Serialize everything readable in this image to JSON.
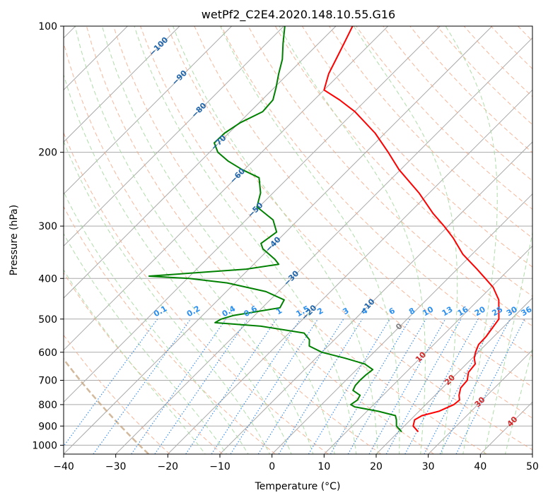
{
  "chart_data": {
    "type": "line",
    "title": "wetPf2_C2E4.2020.148.10.55.G16",
    "xlabel": "Temperature (°C)",
    "ylabel": "Pressure (hPa)",
    "xlim": [
      -40,
      50
    ],
    "ylim": [
      1050,
      100
    ],
    "x_ticks": [
      -40,
      -30,
      -20,
      -10,
      0,
      10,
      20,
      30,
      40,
      50
    ],
    "x_tick_labels": [
      "−40",
      "−30",
      "−20",
      "−10",
      "0",
      "10",
      "20",
      "30",
      "40",
      "50"
    ],
    "y_ticks": [
      100,
      200,
      300,
      400,
      500,
      600,
      700,
      800,
      900,
      1000
    ],
    "y_tick_labels": [
      "100",
      "200",
      "300",
      "400",
      "500",
      "600",
      "700",
      "800",
      "900",
      "1000"
    ],
    "grid": true,
    "series": [
      {
        "name": "Temperature",
        "color": "#ff0000",
        "points": [
          [
            929,
            23.8
          ],
          [
            900,
            21.7
          ],
          [
            870,
            20.8
          ],
          [
            850,
            21.4
          ],
          [
            830,
            23.8
          ],
          [
            800,
            25.4
          ],
          [
            780,
            25.6
          ],
          [
            760,
            24.6
          ],
          [
            730,
            23.5
          ],
          [
            700,
            23.3
          ],
          [
            670,
            22.0
          ],
          [
            640,
            21.7
          ],
          [
            620,
            20.4
          ],
          [
            600,
            19.5
          ],
          [
            575,
            18.6
          ],
          [
            550,
            18.5
          ],
          [
            500,
            17.6
          ],
          [
            450,
            13.9
          ],
          [
            420,
            10.4
          ],
          [
            400,
            7.2
          ],
          [
            380,
            3.8
          ],
          [
            350,
            -1.8
          ],
          [
            320,
            -6.8
          ],
          [
            300,
            -10.8
          ],
          [
            280,
            -15.3
          ],
          [
            250,
            -22.0
          ],
          [
            220,
            -30.3
          ],
          [
            200,
            -35.7
          ],
          [
            180,
            -41.9
          ],
          [
            160,
            -49.9
          ],
          [
            150,
            -55.1
          ],
          [
            142,
            -60.0
          ],
          [
            130,
            -62.2
          ],
          [
            120,
            -63.6
          ],
          [
            110,
            -65.1
          ],
          [
            100,
            -66.8
          ]
        ]
      },
      {
        "name": "Dewpoint",
        "color": "#008000",
        "points": [
          [
            929,
            20.6
          ],
          [
            900,
            18.5
          ],
          [
            870,
            17.3
          ],
          [
            850,
            16.3
          ],
          [
            830,
            12.2
          ],
          [
            810,
            6.8
          ],
          [
            800,
            5.6
          ],
          [
            780,
            6.0
          ],
          [
            760,
            5.6
          ],
          [
            740,
            3.3
          ],
          [
            720,
            2.8
          ],
          [
            700,
            2.7
          ],
          [
            680,
            2.8
          ],
          [
            660,
            3.1
          ],
          [
            640,
            0.5
          ],
          [
            620,
            -4.4
          ],
          [
            600,
            -10.0
          ],
          [
            580,
            -13.6
          ],
          [
            560,
            -14.8
          ],
          [
            540,
            -17.1
          ],
          [
            520,
            -26.7
          ],
          [
            510,
            -36.2
          ],
          [
            500,
            -35.7
          ],
          [
            490,
            -34.0
          ],
          [
            470,
            -26.6
          ],
          [
            450,
            -27.3
          ],
          [
            430,
            -32.4
          ],
          [
            410,
            -41.5
          ],
          [
            400,
            -49.7
          ],
          [
            395,
            -57.8
          ],
          [
            380,
            -40.5
          ],
          [
            370,
            -35.2
          ],
          [
            360,
            -36.9
          ],
          [
            340,
            -41.2
          ],
          [
            330,
            -42.6
          ],
          [
            310,
            -41.8
          ],
          [
            290,
            -44.8
          ],
          [
            270,
            -50.4
          ],
          [
            250,
            -52.4
          ],
          [
            230,
            -55.6
          ],
          [
            220,
            -60.4
          ],
          [
            210,
            -64.7
          ],
          [
            200,
            -68.4
          ],
          [
            190,
            -70.9
          ],
          [
            180,
            -70.8
          ],
          [
            170,
            -69.8
          ],
          [
            160,
            -67.6
          ],
          [
            150,
            -67.9
          ],
          [
            140,
            -69.7
          ],
          [
            130,
            -71.8
          ],
          [
            120,
            -73.9
          ],
          [
            110,
            -76.8
          ],
          [
            100,
            -79.8
          ]
        ]
      }
    ],
    "mixing_ratio_labels": [
      "0.1",
      "0.2",
      "0.4",
      "0.6",
      "1",
      "1.5",
      "2",
      "3",
      "4",
      "6",
      "8",
      "10",
      "13",
      "16",
      "20",
      "25",
      "30",
      "36"
    ],
    "mixing_ratio_values": [
      0.1,
      0.2,
      0.4,
      0.6,
      1,
      1.5,
      2,
      3,
      4,
      6,
      8,
      10,
      13,
      16,
      20,
      25,
      30,
      36
    ],
    "moist_adiabat_labels": [
      "−100",
      "−90",
      "−80",
      "−70",
      "−60",
      "−50",
      "−40",
      "−30",
      "−20",
      "−10",
      "0",
      "10",
      "20",
      "30",
      "40"
    ],
    "moist_adiabat_values": [
      -100,
      -90,
      -80,
      -70,
      -60,
      -50,
      -40,
      -30,
      -20,
      -10,
      0,
      10,
      20,
      30,
      40
    ],
    "colors": {
      "isotherm": "#aaaaaa",
      "isobar": "#aaaaaa",
      "dry_adiabat": "#f4a582",
      "moist_adiabat": "#a6d9a0",
      "mixing_ratio": "#3a8ee6",
      "label_blue": "#2166ac",
      "label_red": "#d62728",
      "label_mix": "#2a8ff0",
      "label_zero": "#7f7f7f",
      "highlight": "#c8a882"
    }
  }
}
